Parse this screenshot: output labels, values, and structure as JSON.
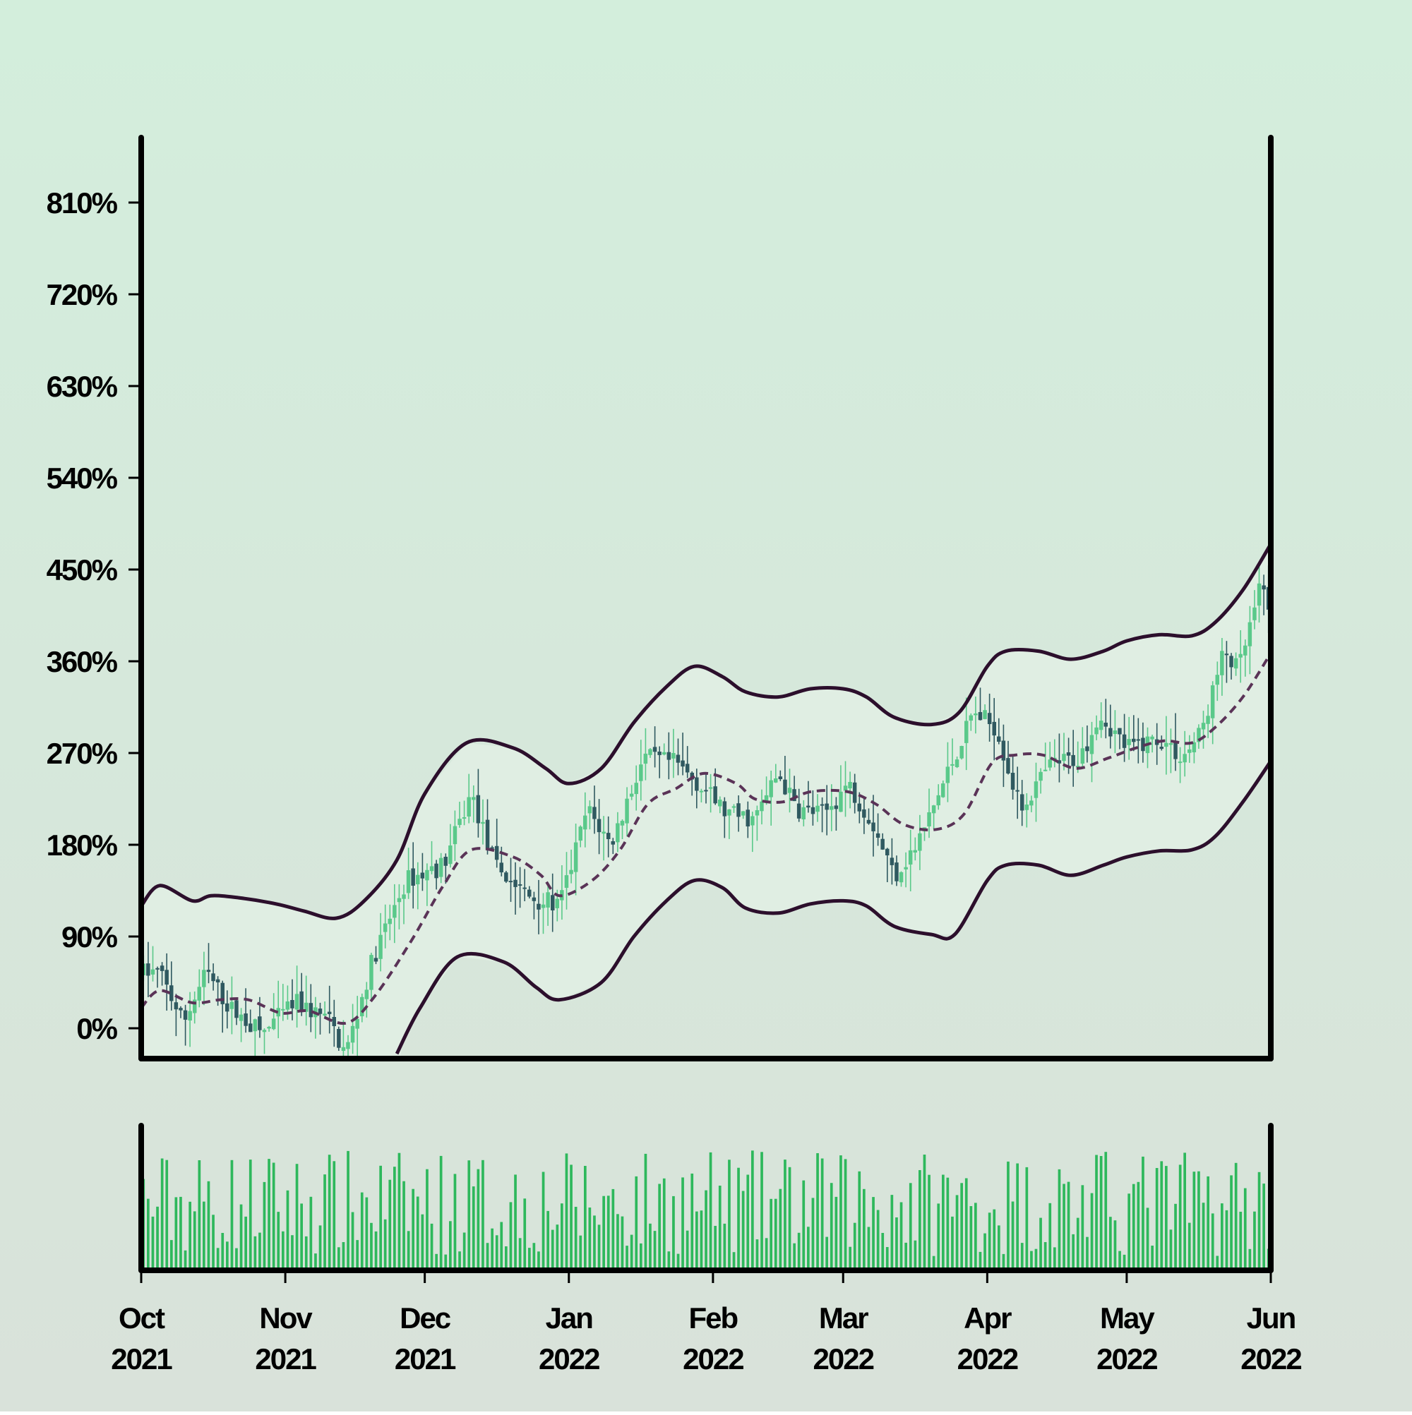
{
  "chart_data": {
    "type": "candlestick",
    "title": "",
    "xlabel": "",
    "ylabel": "",
    "x_range": [
      "2021-10-01",
      "2022-06-01"
    ],
    "ylim": [
      -30,
      880
    ],
    "y_ticks": [
      {
        "value": 0,
        "label": "0%"
      },
      {
        "value": 90,
        "label": "90%"
      },
      {
        "value": 180,
        "label": "180%"
      },
      {
        "value": 270,
        "label": "270%"
      },
      {
        "value": 360,
        "label": "360%"
      },
      {
        "value": 450,
        "label": "450%"
      },
      {
        "value": 540,
        "label": "540%"
      },
      {
        "value": 630,
        "label": "630%"
      },
      {
        "value": 720,
        "label": "720%"
      },
      {
        "value": 810,
        "label": "810%"
      }
    ],
    "x_ticks": [
      {
        "date": "2021-10-01",
        "month": "Oct",
        "year": "2021"
      },
      {
        "date": "2021-11-01",
        "month": "Nov",
        "year": "2021"
      },
      {
        "date": "2021-12-01",
        "month": "Dec",
        "year": "2021"
      },
      {
        "date": "2022-01-01",
        "month": "Jan",
        "year": "2022"
      },
      {
        "date": "2022-02-01",
        "month": "Feb",
        "year": "2022"
      },
      {
        "date": "2022-03-01",
        "month": "Mar",
        "year": "2022"
      },
      {
        "date": "2022-04-01",
        "month": "Apr",
        "year": "2022"
      },
      {
        "date": "2022-05-01",
        "month": "May",
        "year": "2022"
      },
      {
        "date": "2022-06-01",
        "month": "Jun",
        "year": "2022"
      }
    ],
    "price_path": [
      {
        "date": "2021-10-01",
        "value": 55
      },
      {
        "date": "2021-10-05",
        "value": 55
      },
      {
        "date": "2021-10-10",
        "value": 5
      },
      {
        "date": "2021-10-15",
        "value": 55
      },
      {
        "date": "2021-10-20",
        "value": 20
      },
      {
        "date": "2021-10-27",
        "value": -5
      },
      {
        "date": "2021-11-03",
        "value": 25
      },
      {
        "date": "2021-11-10",
        "value": 10
      },
      {
        "date": "2021-11-14",
        "value": -25
      },
      {
        "date": "2021-11-20",
        "value": 70
      },
      {
        "date": "2021-11-27",
        "value": 145
      },
      {
        "date": "2021-12-05",
        "value": 160
      },
      {
        "date": "2021-12-11",
        "value": 230
      },
      {
        "date": "2021-12-16",
        "value": 160
      },
      {
        "date": "2021-12-23",
        "value": 130
      },
      {
        "date": "2021-12-30",
        "value": 120
      },
      {
        "date": "2022-01-05",
        "value": 215
      },
      {
        "date": "2022-01-10",
        "value": 180
      },
      {
        "date": "2022-01-17",
        "value": 265
      },
      {
        "date": "2022-01-24",
        "value": 260
      },
      {
        "date": "2022-01-30",
        "value": 235
      },
      {
        "date": "2022-02-04",
        "value": 210
      },
      {
        "date": "2022-02-10",
        "value": 205
      },
      {
        "date": "2022-02-15",
        "value": 250
      },
      {
        "date": "2022-02-19",
        "value": 215
      },
      {
        "date": "2022-02-25",
        "value": 210
      },
      {
        "date": "2022-03-02",
        "value": 240
      },
      {
        "date": "2022-03-07",
        "value": 205
      },
      {
        "date": "2022-03-12",
        "value": 150
      },
      {
        "date": "2022-03-17",
        "value": 180
      },
      {
        "date": "2022-03-23",
        "value": 245
      },
      {
        "date": "2022-03-29",
        "value": 310
      },
      {
        "date": "2022-04-03",
        "value": 295
      },
      {
        "date": "2022-04-08",
        "value": 215
      },
      {
        "date": "2022-04-15",
        "value": 260
      },
      {
        "date": "2022-04-21",
        "value": 265
      },
      {
        "date": "2022-04-25",
        "value": 310
      },
      {
        "date": "2022-05-01",
        "value": 275
      },
      {
        "date": "2022-05-08",
        "value": 285
      },
      {
        "date": "2022-05-13",
        "value": 265
      },
      {
        "date": "2022-05-17",
        "value": 290
      },
      {
        "date": "2022-05-22",
        "value": 370
      },
      {
        "date": "2022-05-25",
        "value": 350
      },
      {
        "date": "2022-05-30",
        "value": 435
      },
      {
        "date": "2022-06-01",
        "value": 410
      }
    ],
    "upper_band": [
      {
        "date": "2021-10-01",
        "value": 120
      },
      {
        "date": "2021-10-05",
        "value": 140
      },
      {
        "date": "2021-10-12",
        "value": 125
      },
      {
        "date": "2021-10-16",
        "value": 130
      },
      {
        "date": "2021-10-22",
        "value": 128
      },
      {
        "date": "2021-10-30",
        "value": 122
      },
      {
        "date": "2021-11-05",
        "value": 115
      },
      {
        "date": "2021-11-12",
        "value": 108
      },
      {
        "date": "2021-11-18",
        "value": 125
      },
      {
        "date": "2021-11-25",
        "value": 165
      },
      {
        "date": "2021-12-01",
        "value": 230
      },
      {
        "date": "2021-12-10",
        "value": 280
      },
      {
        "date": "2021-12-20",
        "value": 275
      },
      {
        "date": "2021-12-27",
        "value": 255
      },
      {
        "date": "2022-01-01",
        "value": 240
      },
      {
        "date": "2022-01-08",
        "value": 255
      },
      {
        "date": "2022-01-15",
        "value": 300
      },
      {
        "date": "2022-01-22",
        "value": 335
      },
      {
        "date": "2022-01-28",
        "value": 355
      },
      {
        "date": "2022-02-03",
        "value": 345
      },
      {
        "date": "2022-02-08",
        "value": 330
      },
      {
        "date": "2022-02-15",
        "value": 325
      },
      {
        "date": "2022-02-22",
        "value": 333
      },
      {
        "date": "2022-03-01",
        "value": 333
      },
      {
        "date": "2022-03-06",
        "value": 325
      },
      {
        "date": "2022-03-12",
        "value": 305
      },
      {
        "date": "2022-03-20",
        "value": 298
      },
      {
        "date": "2022-03-26",
        "value": 310
      },
      {
        "date": "2022-04-01",
        "value": 355
      },
      {
        "date": "2022-04-05",
        "value": 370
      },
      {
        "date": "2022-04-12",
        "value": 370
      },
      {
        "date": "2022-04-19",
        "value": 362
      },
      {
        "date": "2022-04-26",
        "value": 370
      },
      {
        "date": "2022-05-01",
        "value": 380
      },
      {
        "date": "2022-05-08",
        "value": 386
      },
      {
        "date": "2022-05-15",
        "value": 385
      },
      {
        "date": "2022-05-20",
        "value": 398
      },
      {
        "date": "2022-05-26",
        "value": 430
      },
      {
        "date": "2022-06-01",
        "value": 475
      }
    ],
    "middle_band": [
      {
        "date": "2021-10-01",
        "value": 20
      },
      {
        "date": "2021-10-05",
        "value": 37
      },
      {
        "date": "2021-10-12",
        "value": 25
      },
      {
        "date": "2021-10-18",
        "value": 28
      },
      {
        "date": "2021-10-24",
        "value": 28
      },
      {
        "date": "2021-10-31",
        "value": 15
      },
      {
        "date": "2021-11-06",
        "value": 17
      },
      {
        "date": "2021-11-14",
        "value": 5
      },
      {
        "date": "2021-11-20",
        "value": 30
      },
      {
        "date": "2021-11-28",
        "value": 85
      },
      {
        "date": "2021-12-05",
        "value": 140
      },
      {
        "date": "2021-12-11",
        "value": 175
      },
      {
        "date": "2021-12-20",
        "value": 168
      },
      {
        "date": "2021-12-26",
        "value": 150
      },
      {
        "date": "2021-12-30",
        "value": 130
      },
      {
        "date": "2022-01-06",
        "value": 145
      },
      {
        "date": "2022-01-12",
        "value": 175
      },
      {
        "date": "2022-01-18",
        "value": 220
      },
      {
        "date": "2022-01-24",
        "value": 235
      },
      {
        "date": "2022-01-30",
        "value": 250
      },
      {
        "date": "2022-02-06",
        "value": 240
      },
      {
        "date": "2022-02-10",
        "value": 225
      },
      {
        "date": "2022-02-16",
        "value": 222
      },
      {
        "date": "2022-02-22",
        "value": 232
      },
      {
        "date": "2022-03-02",
        "value": 232
      },
      {
        "date": "2022-03-08",
        "value": 220
      },
      {
        "date": "2022-03-14",
        "value": 200
      },
      {
        "date": "2022-03-21",
        "value": 195
      },
      {
        "date": "2022-03-27",
        "value": 210
      },
      {
        "date": "2022-04-02",
        "value": 260
      },
      {
        "date": "2022-04-07",
        "value": 268
      },
      {
        "date": "2022-04-13",
        "value": 268
      },
      {
        "date": "2022-04-20",
        "value": 255
      },
      {
        "date": "2022-04-27",
        "value": 265
      },
      {
        "date": "2022-05-03",
        "value": 275
      },
      {
        "date": "2022-05-09",
        "value": 282
      },
      {
        "date": "2022-05-15",
        "value": 280
      },
      {
        "date": "2022-05-20",
        "value": 295
      },
      {
        "date": "2022-05-26",
        "value": 325
      },
      {
        "date": "2022-06-01",
        "value": 368
      }
    ],
    "lower_band": [
      {
        "date": "2021-11-25",
        "value": -25
      },
      {
        "date": "2021-11-30",
        "value": 20
      },
      {
        "date": "2021-12-08",
        "value": 70
      },
      {
        "date": "2021-12-18",
        "value": 65
      },
      {
        "date": "2021-12-25",
        "value": 40
      },
      {
        "date": "2021-12-30",
        "value": 28
      },
      {
        "date": "2022-01-08",
        "value": 45
      },
      {
        "date": "2022-01-15",
        "value": 90
      },
      {
        "date": "2022-01-22",
        "value": 125
      },
      {
        "date": "2022-01-28",
        "value": 145
      },
      {
        "date": "2022-02-03",
        "value": 138
      },
      {
        "date": "2022-02-08",
        "value": 118
      },
      {
        "date": "2022-02-15",
        "value": 113
      },
      {
        "date": "2022-02-22",
        "value": 122
      },
      {
        "date": "2022-03-01",
        "value": 125
      },
      {
        "date": "2022-03-06",
        "value": 120
      },
      {
        "date": "2022-03-12",
        "value": 100
      },
      {
        "date": "2022-03-20",
        "value": 92
      },
      {
        "date": "2022-03-25",
        "value": 92
      },
      {
        "date": "2022-04-01",
        "value": 145
      },
      {
        "date": "2022-04-05",
        "value": 160
      },
      {
        "date": "2022-04-12",
        "value": 160
      },
      {
        "date": "2022-04-19",
        "value": 150
      },
      {
        "date": "2022-04-26",
        "value": 160
      },
      {
        "date": "2022-05-01",
        "value": 168
      },
      {
        "date": "2022-05-08",
        "value": 174
      },
      {
        "date": "2022-05-15",
        "value": 175
      },
      {
        "date": "2022-05-20",
        "value": 188
      },
      {
        "date": "2022-05-26",
        "value": 222
      },
      {
        "date": "2022-06-01",
        "value": 262
      }
    ],
    "colors": {
      "background_top": "#d3eedc",
      "background_bottom": "#d9e2da",
      "up": "#5ac98a",
      "down": "#2f5960",
      "band_line": "#2c0f2c",
      "middle_line": "#5a3357",
      "band_fill": "#e3f0e6",
      "volume": "#2eb85c",
      "axis": "#000000"
    },
    "volume": {
      "type": "bar",
      "note_unit": "relative"
    },
    "grid": false,
    "legend": "none"
  }
}
